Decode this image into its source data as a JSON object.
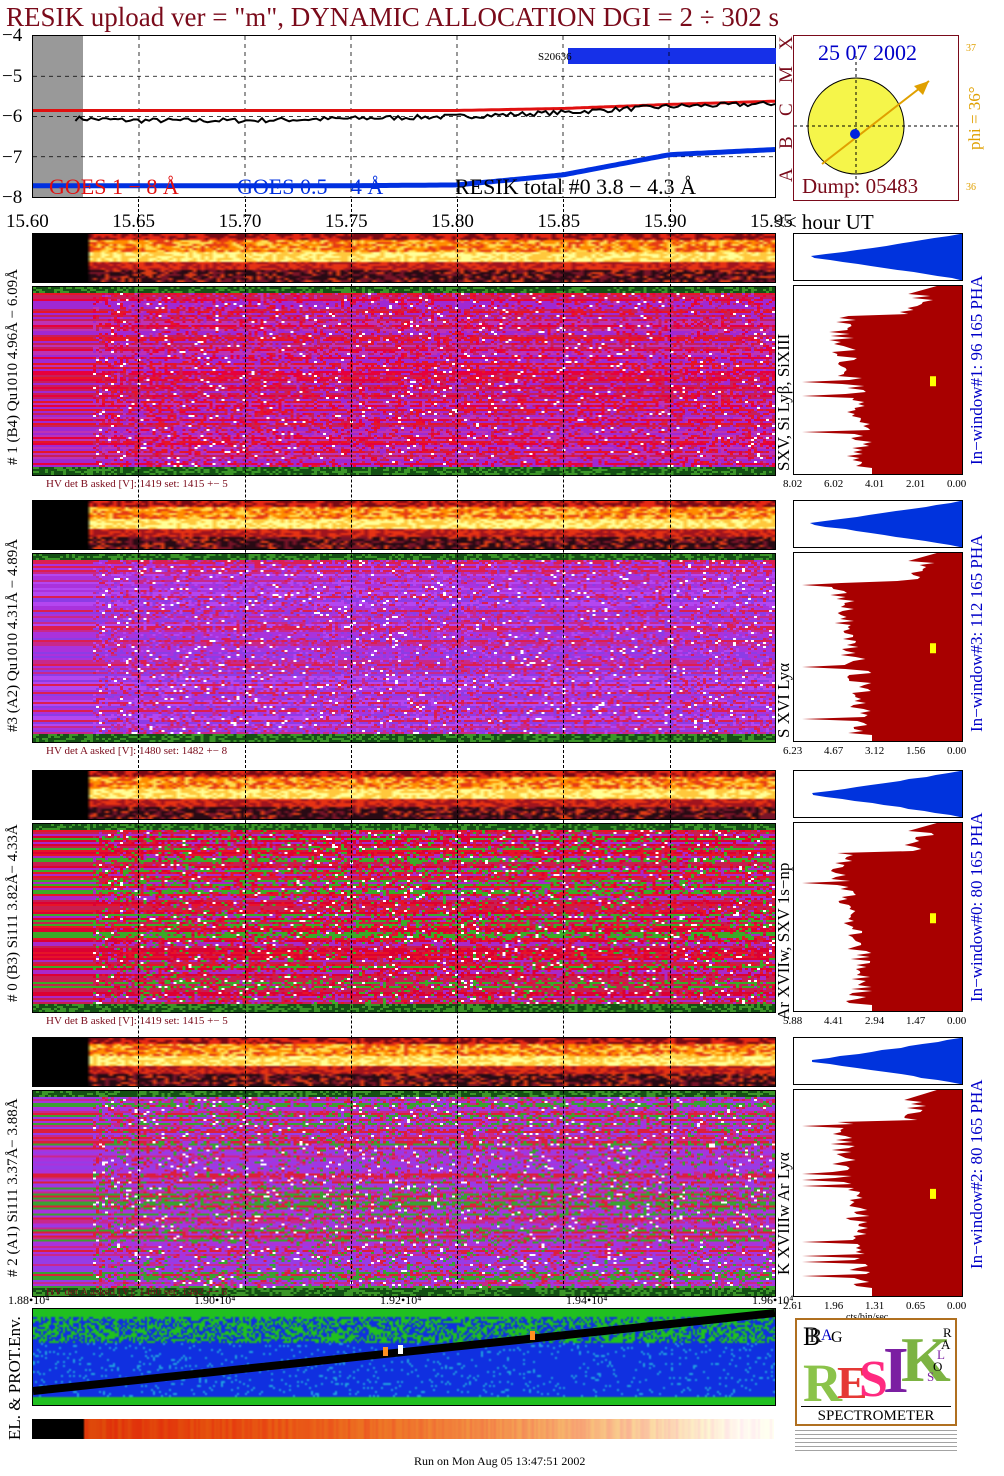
{
  "header": {
    "title": "RESIK upload ver = \"m\", DYNAMIC ALLOCATION  DGI =   2 ÷ 302 s"
  },
  "colors": {
    "title": "#7a0a1a",
    "goes_long": "#e01010",
    "goes_short": "#0030e0",
    "resik_total": "#000000",
    "orbit_fill": "#f5f54a",
    "orbit_text": "#0000c8",
    "dump_text": "#7a0a1a",
    "phi_text": "#e0a000",
    "pha_blue": "#0033dd",
    "pha_red": "#a80000",
    "label_blue": "#0000c8"
  },
  "lightcurve": {
    "ylim": [
      -8,
      -4
    ],
    "y_ticks": [
      "−4",
      "−5",
      "−6",
      "−7",
      "−8"
    ],
    "x_ticks": [
      "15.60",
      "15.65",
      "15.70",
      "15.75",
      "15.80",
      "15.85",
      "15.90",
      "15.95"
    ],
    "x_suffix": "<< hour UT",
    "class_letters": [
      "X",
      "M",
      "C",
      "B",
      "A"
    ],
    "marker_label": "S20636",
    "legend": {
      "goes_long": "GOES 1 − 8 Å",
      "goes_short": "GOES 0.5 − 4 Å",
      "resik": "RESIK total #0  3.8 − 4.3 Å"
    }
  },
  "chart_data": {
    "type": "line",
    "xlabel": "hour UT",
    "x": [
      15.62,
      15.65,
      15.7,
      15.75,
      15.8,
      15.85,
      15.9,
      15.95
    ],
    "xlim": [
      15.6,
      15.95
    ],
    "ylim": [
      -8,
      -4
    ],
    "series": [
      {
        "name": "GOES 1 − 8 Å",
        "values": [
          -5.85,
          -5.85,
          -5.85,
          -5.85,
          -5.85,
          -5.8,
          -5.7,
          -5.62
        ]
      },
      {
        "name": "GOES 0.5 − 4 Å",
        "values": [
          -7.72,
          -7.72,
          -7.72,
          -7.72,
          -7.7,
          -7.45,
          -6.95,
          -6.82
        ]
      },
      {
        "name": "RESIK total #0  3.8 − 4.3 Å",
        "values": [
          -6.05,
          -6.1,
          -6.1,
          -6.05,
          -6.0,
          -5.9,
          -5.75,
          -5.68
        ]
      }
    ]
  },
  "orbit": {
    "date": "25 07 2002",
    "dump": "Dump: 05483",
    "phi": "phi = 36°",
    "phi_top": "37",
    "phi_bottom": "36"
  },
  "channels": [
    {
      "id": "ch1",
      "left_label": "# 1 (B4) Qu1010 4.96Å − 6.09Å",
      "line_label": "SXV, Si Lyβ, SiXIII",
      "window_label": "In−window#1:   96 165 PHA",
      "hv": "HV det B asked [V]:  1419 set:  1415 +−    5",
      "pha_ticks": [
        "8.02",
        "6.02",
        "4.01",
        "2.01",
        "0.00"
      ],
      "palette": "red"
    },
    {
      "id": "ch3",
      "left_label": "#3 (A2) Qu1010  4.31Å − 4.89Å",
      "line_label": "S XVI Lyα",
      "window_label": "In−window#3:   112 165 PHA",
      "hv": "HV det A asked [V]:  1480 set:   1482 +−    8",
      "pha_ticks": [
        "6.23",
        "4.67",
        "3.12",
        "1.56",
        "0.00"
      ],
      "palette": "purple"
    },
    {
      "id": "ch0",
      "left_label": "# 0 (B3) Si111  3.82Å− 4.33Å",
      "line_label": "Ar XVIIw,  SXV 1s−np",
      "window_label": "In−window#0:   80 165 PHA",
      "hv": "HV det B asked [V]:  1419 set:  1415 +−    5",
      "pha_ticks": [
        "5.88",
        "4.41",
        "2.94",
        "1.47",
        "0.00"
      ],
      "palette": "green"
    },
    {
      "id": "ch2",
      "left_label": "# 2 (A1) Si111  3.37Å−  3.88Å",
      "line_label": "K XVIIIw  Ar Lyα",
      "window_label": "In−window#2:   80 165 PHA",
      "hv": "HV det A asked [V]:  1480 set:   1482 +−    8",
      "pha_ticks": [
        "2.61",
        "1.96",
        "1.31",
        "0.65",
        "0.00"
      ],
      "palette": "mixed"
    }
  ],
  "pha_unit": "cts/bin/sec",
  "env": {
    "label": "EL. & PROT.Env.",
    "x_ticks": [
      "1.88•10⁴",
      "1.90•10⁴",
      "1.92•10⁴",
      "1.94•10⁴",
      "1.96•10⁴"
    ]
  },
  "logo": {
    "letters": [
      "B",
      "R",
      "A",
      "G",
      "R",
      "E",
      "S",
      "I",
      "K",
      "S",
      "O",
      "L",
      "A",
      "R"
    ],
    "caption": "SPECTROMETER"
  },
  "footer": {
    "run": "Run on Mon Aug 05 13:47:51 2002"
  }
}
